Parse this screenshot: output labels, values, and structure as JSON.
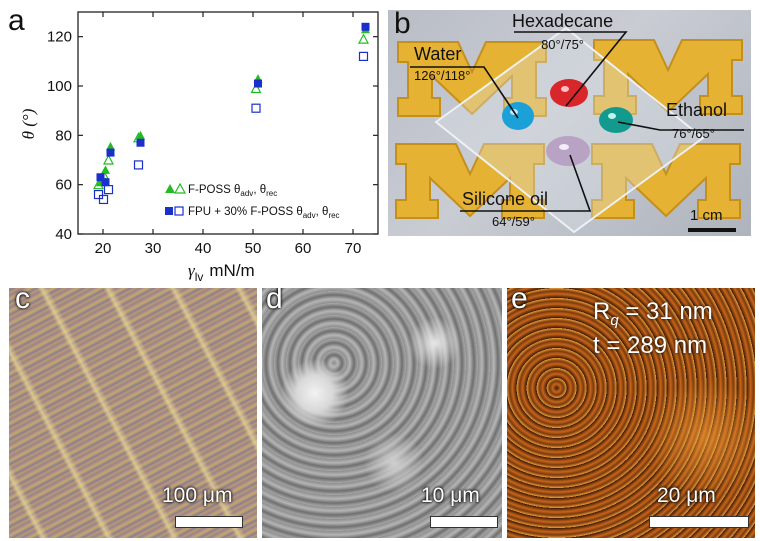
{
  "panels": {
    "a": "a",
    "b": "b",
    "c": "c",
    "d": "d",
    "e": "e"
  },
  "chart_data": {
    "type": "scatter",
    "xlabel_symbol": "γ",
    "xlabel_sub": "lv",
    "xlabel_unit": "mN/m",
    "ylabel": "θ (°)",
    "xlim": [
      15,
      75
    ],
    "ylim": [
      40,
      130
    ],
    "xticks": [
      20,
      30,
      40,
      50,
      60,
      70
    ],
    "yticks": [
      40,
      60,
      80,
      100,
      120
    ],
    "legend": [
      {
        "name": "F-POSS θ",
        "sub1": "adv",
        "sep": ", θ",
        "sub2": "rec",
        "color": "#22bb22"
      },
      {
        "name": "FPU + 30% F-POSS θ",
        "sub1": "adv",
        "sep": ", θ",
        "sub2": "rec",
        "color": "#1a2fcc"
      }
    ],
    "series": [
      {
        "name": "F-POSS adv",
        "x": [
          19.5,
          20.5,
          21.5,
          27.5,
          51,
          72.5
        ],
        "y": [
          61,
          66,
          75.5,
          80,
          103,
          123
        ]
      },
      {
        "name": "F-POSS rec",
        "x": [
          19.5,
          20.5,
          21.5,
          27.5,
          51,
          72.5
        ],
        "y": [
          60,
          64,
          70,
          79,
          99,
          119
        ]
      },
      {
        "name": "FPU adv",
        "x": [
          19.5,
          20.5,
          21.5,
          27.5,
          51,
          72.5
        ],
        "y": [
          63,
          61,
          73,
          77,
          101,
          124
        ]
      },
      {
        "name": "FPU rec",
        "x": [
          19.5,
          20.5,
          21.5,
          27.5,
          51,
          72.5
        ],
        "y": [
          56,
          54,
          58,
          68,
          91,
          112
        ]
      }
    ]
  },
  "photo_b": {
    "letters": [
      "M",
      "M",
      "M",
      "M"
    ],
    "labels": [
      {
        "name": "Water",
        "angles": "126°/118°"
      },
      {
        "name": "Hexadecane",
        "angles": "80°/75°"
      },
      {
        "name": "Ethanol",
        "angles": "76°/65°"
      },
      {
        "name": "Silicone oil",
        "angles": "64°/59°"
      }
    ],
    "scale": "1 cm",
    "colors": {
      "water": "#1ba0d8",
      "hexadecane": "#d8262a",
      "ethanol": "#139a8f",
      "silicone": "#b8a3c4",
      "maize": "#e5b233"
    }
  },
  "micro_c": {
    "scale": "100 μm"
  },
  "micro_d": {
    "scale": "10 μm"
  },
  "micro_e": {
    "rq_label": "R",
    "rq_sub": "q",
    "rq_value": " = 31 nm",
    "t_label": "t",
    "t_value": " = 289 nm",
    "scale": "20 μm"
  }
}
